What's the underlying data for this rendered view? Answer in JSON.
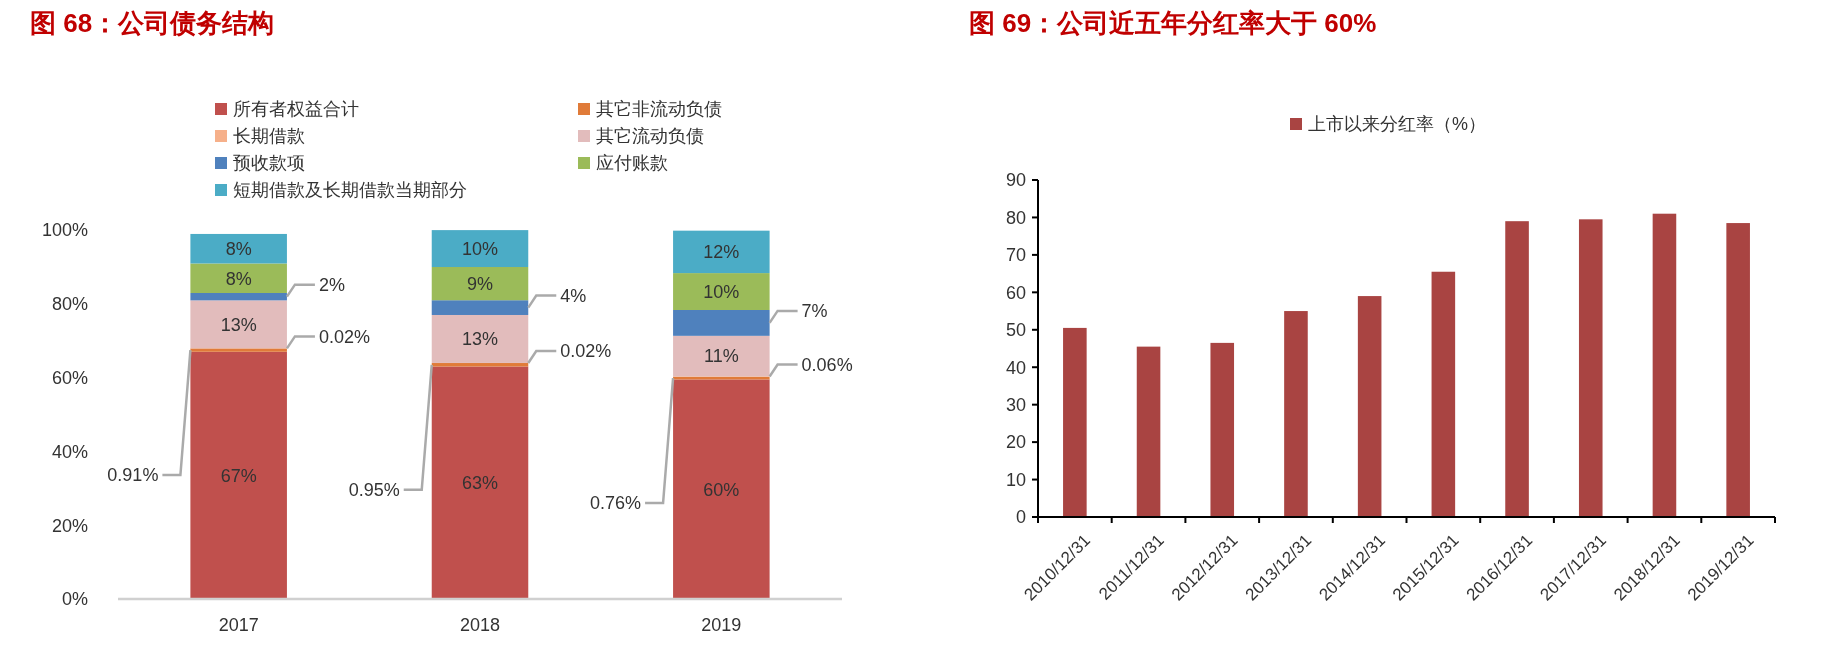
{
  "chart_data": [
    {
      "type": "bar",
      "title": "图 68：公司债务结构",
      "stacked": true,
      "categories": [
        "2017",
        "2018",
        "2019"
      ],
      "series": [
        {
          "name": "所有者权益合计",
          "color": "#c0504d",
          "values": [
            67,
            63,
            59.5
          ],
          "value_labels": [
            "67%",
            "63%",
            "60%"
          ]
        },
        {
          "name": "其它非流动负债",
          "color": "#e07b39",
          "values": [
            0.91,
            0.95,
            0.76
          ],
          "value_labels": [
            "0.91%",
            "0.95%",
            "0.76%"
          ]
        },
        {
          "name": "长期借款",
          "color": "#f6b08a",
          "values": [
            0.02,
            0.02,
            0.06
          ],
          "value_labels": [
            "0.02%",
            "0.02%",
            "0.06%"
          ]
        },
        {
          "name": "其它流动负债",
          "color": "#e2bcbc",
          "values": [
            13,
            13,
            11
          ],
          "value_labels": [
            "13%",
            "13%",
            "11%"
          ]
        },
        {
          "name": "预收款项",
          "color": "#4f81bd",
          "values": [
            2,
            4,
            7
          ],
          "value_labels": [
            "2%",
            "4%",
            "7%"
          ]
        },
        {
          "name": "应付账款",
          "color": "#9bbb59",
          "values": [
            8,
            9,
            10
          ],
          "value_labels": [
            "8%",
            "9%",
            "10%"
          ]
        },
        {
          "name": "短期借款及长期借款当期部分",
          "color": "#4bacc6",
          "values": [
            8,
            10,
            11.5
          ],
          "value_labels": [
            "8%",
            "10%",
            "12%"
          ]
        }
      ],
      "ylim": [
        0,
        100
      ],
      "yticks": [
        {
          "value": 0,
          "label": "0%"
        },
        {
          "value": 20,
          "label": "20%"
        },
        {
          "value": 40,
          "label": "40%"
        },
        {
          "value": 60,
          "label": "60%"
        },
        {
          "value": 80,
          "label": "80%"
        },
        {
          "value": 100,
          "label": "100%"
        }
      ],
      "legend": "top"
    },
    {
      "type": "bar",
      "title": "图 69：公司近五年分红率大于 60%",
      "categories": [
        "2010/12/31",
        "2011/12/31",
        "2012/12/31",
        "2013/12/31",
        "2014/12/31",
        "2015/12/31",
        "2016/12/31",
        "2017/12/31",
        "2018/12/31",
        "2019/12/31"
      ],
      "series": [
        {
          "name": "上市以来分红率（%）",
          "color": "#a94442",
          "values": [
            50.5,
            45.5,
            46.5,
            55,
            59,
            65.5,
            79,
            79.5,
            81,
            78.5
          ]
        }
      ],
      "ylim": [
        0,
        90
      ],
      "yticks": [
        0,
        10,
        20,
        30,
        40,
        50,
        60,
        70,
        80,
        90
      ],
      "legend": "top"
    }
  ]
}
